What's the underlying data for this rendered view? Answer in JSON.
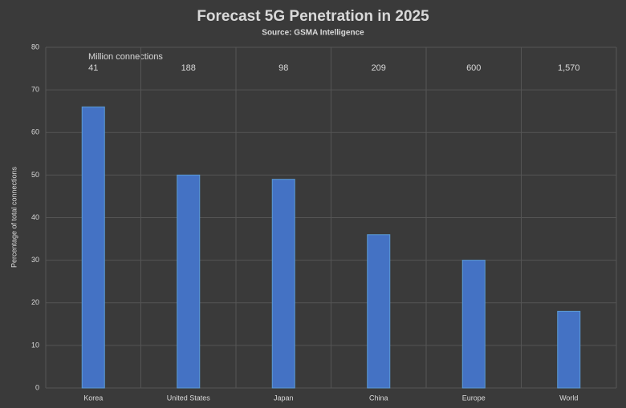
{
  "chart_data": {
    "type": "bar",
    "title": "Forecast 5G Penetration in 2025",
    "subtitle": "Source: GSMA Intelligence",
    "y_label": "Percentage of total connections",
    "categories": [
      "Korea",
      "United States",
      "Japan",
      "China",
      "Europe",
      "World"
    ],
    "values": [
      66,
      50,
      49,
      36,
      30,
      18
    ],
    "color": "#4472c4",
    "ylim": [
      0,
      80
    ],
    "yticks": [
      0,
      10,
      20,
      30,
      40,
      50,
      60,
      70,
      80
    ],
    "grid": true,
    "connections": {
      "label": "Million connections",
      "values": [
        41,
        188,
        98,
        209,
        600,
        1570
      ],
      "value_labels": [
        "41",
        "188",
        "98",
        "209",
        "600",
        "1,570"
      ]
    }
  }
}
